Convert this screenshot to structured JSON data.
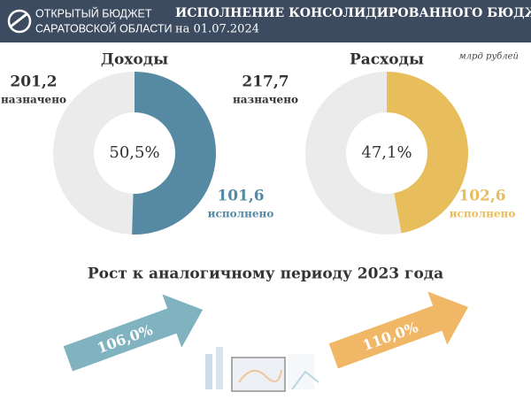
{
  "header": {
    "logo_line1": "ОТКРЫТЫЙ БЮДЖЕТ",
    "logo_line2": "САРАТОВСКОЙ ОБЛАСТИ",
    "title": "ИСПОЛНЕНИЕ КОНСОЛИДИРОВАННОГО БЮДЖЕТА",
    "date": "на 01.07.2024"
  },
  "unit": "млрд рублей",
  "chart_data": [
    {
      "type": "donut",
      "title": "Доходы",
      "color": "#568aa3",
      "track_color": "#ebebeb",
      "planned": {
        "value": 201.2,
        "label": "201,2",
        "caption": "назначено"
      },
      "executed": {
        "value": 101.6,
        "label": "101,6",
        "caption": "исполнено"
      },
      "percent": {
        "value": 50.5,
        "label": "50,5%"
      }
    },
    {
      "type": "donut",
      "title": "Расходы",
      "color": "#e8be5c",
      "track_color": "#ebebeb",
      "planned": {
        "value": 217.7,
        "label": "217,7",
        "caption": "назначено"
      },
      "executed": {
        "value": 102.6,
        "label": "102,6",
        "caption": "исполнено"
      },
      "percent": {
        "value": 47.1,
        "label": "47,1%"
      }
    }
  ],
  "growth": {
    "title": "Рост к аналогичному периоду 2023 года",
    "items": [
      {
        "value": 106.0,
        "label": "106,0%",
        "color": "#80b3bf"
      },
      {
        "value": 110.0,
        "label": "110,0%",
        "color": "#f0b766"
      }
    ]
  }
}
